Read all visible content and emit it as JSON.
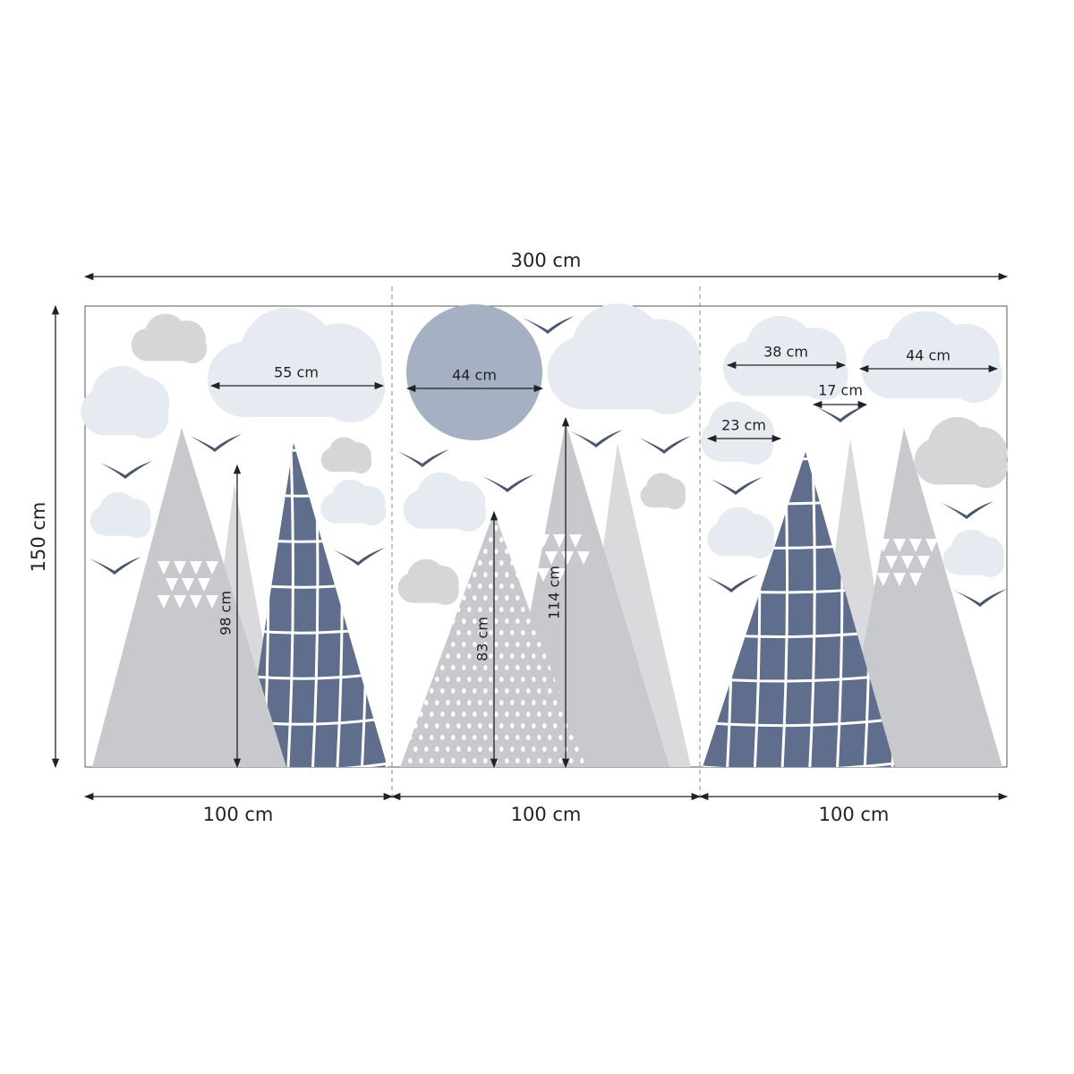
{
  "overall": {
    "width": "300 cm",
    "height": "150 cm"
  },
  "panels": [
    {
      "width": "100 cm"
    },
    {
      "width": "100 cm"
    },
    {
      "width": "100 cm"
    }
  ],
  "measurements": [
    {
      "label": "55 cm"
    },
    {
      "label": "44 cm"
    },
    {
      "label": "38 cm"
    },
    {
      "label": "17 cm"
    },
    {
      "label": "23 cm"
    },
    {
      "label": "44 cm"
    },
    {
      "label": "98 cm"
    },
    {
      "label": "83 cm"
    },
    {
      "label": "114 cm"
    }
  ]
}
